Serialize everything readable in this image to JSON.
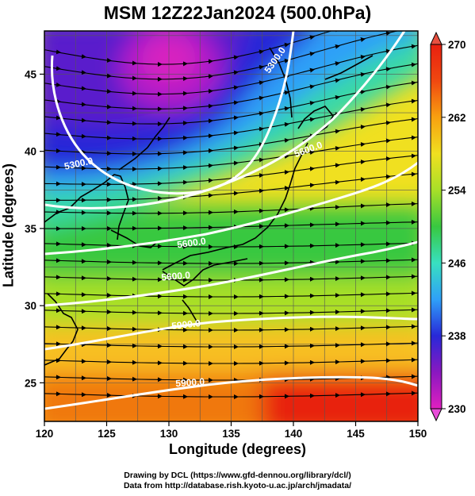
{
  "title": "MSM 12Z22Jan2024 (500.0hPa)",
  "map": {
    "xlabel": "Longitude (degrees)",
    "ylabel": "Latitude  (degrees)",
    "lon_range": [
      120,
      150
    ],
    "lat_range": [
      22.5,
      47.8
    ],
    "x_ticks": [
      "120",
      "125",
      "130",
      "135",
      "140",
      "145",
      "150"
    ],
    "y_ticks": [
      "25",
      "30",
      "35",
      "40",
      "45"
    ],
    "grid": true,
    "contour_labels": [
      "5300.0",
      "5300.0",
      "5600.0",
      "5600.0",
      "5600.0",
      "5900.0",
      "5900.0"
    ],
    "colorbar": {
      "ticks": [
        "230",
        "238",
        "246",
        "254",
        "262",
        "270"
      ],
      "range": [
        230,
        270
      ],
      "colors": [
        "#e020c0",
        "#8a18c0",
        "#2828d8",
        "#2fa0f8",
        "#38e0c0",
        "#38c840",
        "#a8e028",
        "#f0e020",
        "#f8a010",
        "#f04810",
        "#e82010"
      ]
    }
  },
  "credits": [
    "Drawing by DCL (https://www.gfd-dennou.org/library/dcl/)",
    "Data from http://database.rish.kyoto-u.ac.jp/arch/jmadata/"
  ]
}
